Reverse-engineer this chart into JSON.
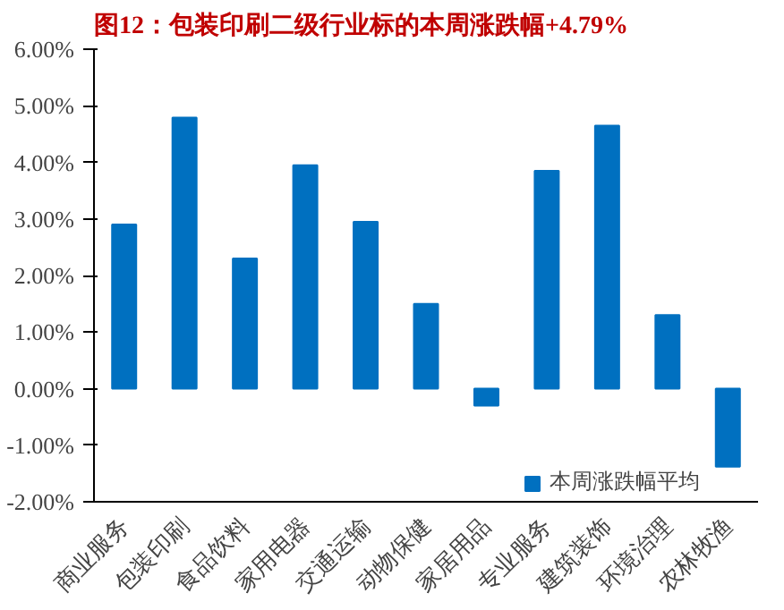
{
  "chart_data": {
    "type": "bar",
    "title": "图12：包装印刷二级行业标的本周涨跌幅+4.79%",
    "categories": [
      "商业服务",
      "包装印刷",
      "食品饮料",
      "家用电器",
      "交通运输",
      "动物保健",
      "家居用品",
      "专业服务",
      "建筑装饰",
      "环境治理",
      "农林牧渔"
    ],
    "series": [
      {
        "name": "本周涨跌幅平均",
        "color": "#0070c0",
        "values": [
          2.9,
          4.79,
          2.3,
          3.95,
          2.95,
          1.5,
          -0.3,
          3.85,
          4.65,
          1.3,
          -1.38
        ]
      }
    ],
    "ylim": [
      -2,
      6
    ],
    "yticks": [
      {
        "value": -2,
        "label": "-2.00%"
      },
      {
        "value": -1,
        "label": "-1.00%"
      },
      {
        "value": 0,
        "label": "0.00%"
      },
      {
        "value": 1,
        "label": "1.00%"
      },
      {
        "value": 2,
        "label": "2.00%"
      },
      {
        "value": 3,
        "label": "3.00%"
      },
      {
        "value": 4,
        "label": "4.00%"
      },
      {
        "value": 5,
        "label": "5.00%"
      },
      {
        "value": 6,
        "label": "6.00%"
      }
    ],
    "grid": false,
    "legend": "bottom right"
  }
}
